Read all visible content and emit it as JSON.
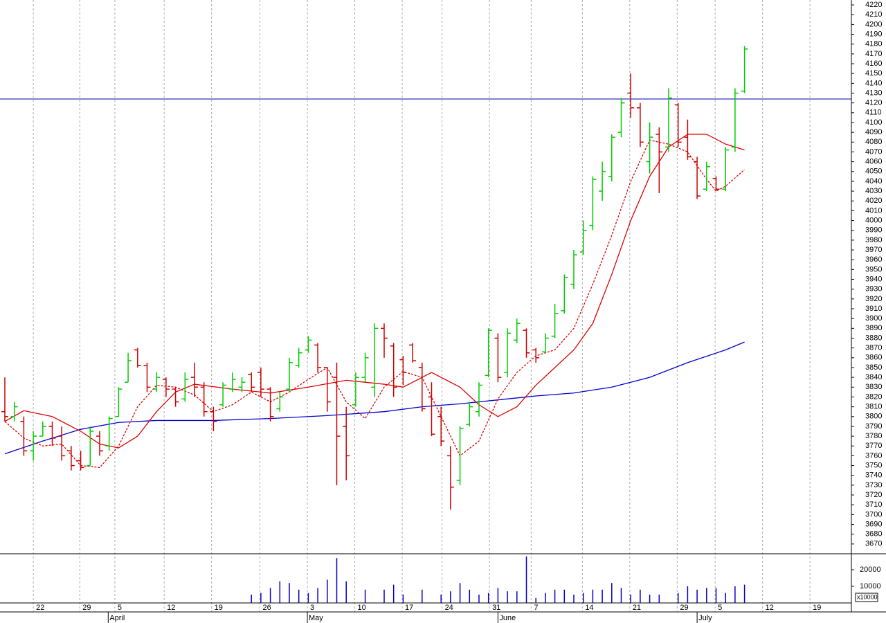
{
  "chart_data": {
    "type": "ohlc",
    "up_color": "#00cc00",
    "down_color": "#cc0000",
    "xlim": [
      -0.51,
      89.27
    ],
    "ylim": [
      3660,
      4225
    ],
    "open": [
      3805,
      3800,
      3795,
      3765,
      3780,
      3790,
      3780,
      3765,
      3755,
      3750,
      3780,
      3770,
      3800,
      3835,
      3868,
      3852,
      3828,
      3838,
      3828,
      3818,
      3840,
      3830,
      3805,
      3812,
      3828,
      3830,
      3843,
      3845,
      3828,
      3808,
      3828,
      3852,
      3868,
      3873,
      3850,
      3840,
      3790,
      3812,
      3840,
      3830,
      3890,
      3872,
      3858,
      3873,
      3850,
      3820,
      3800,
      3760,
      3735,
      3792,
      3805,
      3842,
      3880,
      3845,
      3878,
      3888,
      3868,
      3866,
      3882,
      3908,
      3935,
      3968,
      3995,
      4030,
      4045,
      4090,
      4130,
      4115,
      4060,
      4088,
      4075,
      4118,
      4085,
      4060,
      4032,
      4043,
      4032,
      4075,
      4132
    ],
    "high": [
      3840,
      3815,
      3800,
      3785,
      3795,
      3795,
      3790,
      3770,
      3765,
      3790,
      3785,
      3800,
      3830,
      3865,
      3870,
      3855,
      3845,
      3840,
      3830,
      3845,
      3855,
      3835,
      3810,
      3835,
      3845,
      3840,
      3845,
      3850,
      3830,
      3825,
      3860,
      3870,
      3882,
      3875,
      3850,
      3855,
      3810,
      3845,
      3865,
      3895,
      3895,
      3875,
      3862,
      3875,
      3855,
      3835,
      3810,
      3770,
      3790,
      3815,
      3835,
      3890,
      3885,
      3890,
      3900,
      3890,
      3870,
      3885,
      3915,
      3945,
      3970,
      4000,
      4045,
      4060,
      4088,
      4125,
      4150,
      4120,
      4100,
      4095,
      4135,
      4120,
      4103,
      4065,
      4060,
      4045,
      4075,
      4135,
      4178
    ],
    "low": [
      3795,
      3795,
      3760,
      3755,
      3780,
      3770,
      3755,
      3745,
      3745,
      3750,
      3760,
      3765,
      3800,
      3835,
      3850,
      3825,
      3825,
      3820,
      3810,
      3815,
      3820,
      3800,
      3785,
      3810,
      3825,
      3825,
      3825,
      3820,
      3795,
      3805,
      3825,
      3850,
      3865,
      3845,
      3805,
      3730,
      3735,
      3810,
      3835,
      3820,
      3860,
      3820,
      3832,
      3855,
      3805,
      3780,
      3770,
      3705,
      3730,
      3790,
      3800,
      3840,
      3835,
      3840,
      3875,
      3860,
      3855,
      3865,
      3880,
      3905,
      3930,
      3965,
      3990,
      4020,
      4040,
      4085,
      4105,
      4075,
      4048,
      4028,
      4070,
      4075,
      4062,
      4022,
      4030,
      4030,
      4030,
      4070,
      4130
    ],
    "close": [
      3800,
      3810,
      3765,
      3780,
      3790,
      3778,
      3760,
      3750,
      3748,
      3785,
      3765,
      3798,
      3828,
      3857,
      3852,
      3830,
      3840,
      3828,
      3815,
      3838,
      3830,
      3805,
      3795,
      3832,
      3838,
      3835,
      3830,
      3828,
      3800,
      3820,
      3855,
      3865,
      3878,
      3850,
      3815,
      3780,
      3760,
      3840,
      3860,
      3890,
      3880,
      3830,
      3845,
      3857,
      3808,
      3782,
      3775,
      3728,
      3788,
      3810,
      3832,
      3888,
      3840,
      3885,
      3895,
      3865,
      3860,
      3880,
      3905,
      3942,
      3965,
      3990,
      4042,
      4050,
      4085,
      4120,
      4115,
      4080,
      4085,
      4070,
      4125,
      4080,
      4065,
      4025,
      4055,
      4032,
      4072,
      4130,
      4175
    ],
    "overlays": [
      {
        "color": "#0000cc",
        "dashed": false,
        "x": [
          0,
          4,
          8,
          12,
          16,
          22,
          28,
          34,
          40,
          44,
          48,
          52,
          56,
          60,
          64,
          68,
          72,
          76,
          78
        ],
        "values": [
          3762,
          3775,
          3787,
          3794,
          3796,
          3796,
          3798,
          3801,
          3805,
          3810,
          3813,
          3817,
          3821,
          3824,
          3830,
          3840,
          3855,
          3868,
          3876
        ]
      },
      {
        "color": "#dd0000",
        "dashed": false,
        "x": [
          0,
          2,
          5,
          8,
          10,
          12,
          14,
          16,
          18,
          20,
          24,
          28,
          32,
          36,
          40,
          42,
          45,
          48,
          50,
          52,
          54,
          56,
          58,
          60,
          62,
          64,
          66,
          68,
          70,
          72,
          74,
          76,
          78
        ],
        "values": [
          3795,
          3806,
          3800,
          3785,
          3772,
          3768,
          3780,
          3805,
          3825,
          3833,
          3828,
          3824,
          3830,
          3837,
          3833,
          3830,
          3845,
          3830,
          3812,
          3800,
          3810,
          3832,
          3850,
          3868,
          3895,
          3945,
          4000,
          4045,
          4075,
          4088,
          4088,
          4078,
          4072
        ]
      },
      {
        "color": "#dd0000",
        "dashed": true,
        "x": [
          0,
          2,
          4,
          6,
          8,
          10,
          12,
          14,
          16,
          18,
          20,
          22,
          24,
          26,
          28,
          30,
          32,
          34,
          36,
          38,
          40,
          42,
          44,
          46,
          48,
          50,
          52,
          54,
          56,
          58,
          60,
          62,
          64,
          66,
          68,
          70,
          72,
          74,
          75,
          76,
          78
        ],
        "values": [
          3795,
          3778,
          3770,
          3772,
          3750,
          3748,
          3770,
          3810,
          3832,
          3830,
          3822,
          3805,
          3812,
          3825,
          3815,
          3825,
          3838,
          3850,
          3815,
          3798,
          3830,
          3846,
          3840,
          3800,
          3760,
          3775,
          3818,
          3845,
          3862,
          3868,
          3890,
          3935,
          3985,
          4040,
          4082,
          4078,
          4070,
          4042,
          4030,
          4035,
          4052
        ]
      }
    ],
    "hline": {
      "value": 4124,
      "color": "#0000aa"
    },
    "yticks": [
      3670,
      3680,
      3690,
      3700,
      3710,
      3720,
      3730,
      3740,
      3750,
      3760,
      3770,
      3780,
      3790,
      3800,
      3810,
      3820,
      3830,
      3840,
      3850,
      3860,
      3870,
      3880,
      3890,
      3900,
      3910,
      3920,
      3930,
      3940,
      3950,
      3960,
      3970,
      3980,
      3990,
      4000,
      4010,
      4020,
      4030,
      4040,
      4050,
      4060,
      4070,
      4080,
      4090,
      4100,
      4110,
      4120,
      4130,
      4140,
      4150,
      4160,
      4170,
      4180,
      4190,
      4200,
      4210,
      4220
    ],
    "xticks": [
      {
        "value": 3.0,
        "label": "22"
      },
      {
        "value": 7.9,
        "label": "29"
      },
      {
        "value": 11.6,
        "label": "5"
      },
      {
        "value": 16.8,
        "label": "12"
      },
      {
        "value": 21.8,
        "label": "19"
      },
      {
        "value": 26.9,
        "label": "26"
      },
      {
        "value": 31.9,
        "label": "3"
      },
      {
        "value": 36.9,
        "label": "10"
      },
      {
        "value": 41.9,
        "label": "17"
      },
      {
        "value": 46.1,
        "label": "24"
      },
      {
        "value": 51.1,
        "label": "31"
      },
      {
        "value": 55.5,
        "label": "7"
      },
      {
        "value": 60.9,
        "label": "14"
      },
      {
        "value": 65.9,
        "label": "21"
      },
      {
        "value": 70.9,
        "label": "29"
      },
      {
        "value": 74.9,
        "label": "5"
      },
      {
        "value": 79.9,
        "label": "12"
      },
      {
        "value": 84.9,
        "label": "19"
      }
    ],
    "month_ticks": [
      {
        "value": 10.9,
        "label": "April"
      },
      {
        "value": 31.9,
        "label": "May"
      },
      {
        "value": 52.0,
        "label": "June"
      },
      {
        "value": 73.0,
        "label": "July"
      }
    ],
    "volume": {
      "color": "#0000cc",
      "unit": "x10000",
      "ylim": [
        0,
        29600
      ],
      "yticks": [
        10000,
        20000
      ],
      "values": [
        null,
        null,
        null,
        null,
        null,
        null,
        null,
        null,
        null,
        null,
        null,
        null,
        null,
        null,
        null,
        null,
        null,
        null,
        null,
        null,
        null,
        null,
        null,
        null,
        null,
        null,
        5000,
        6000,
        9000,
        13000,
        12000,
        8000,
        6000,
        9000,
        14000,
        27000,
        13000,
        null,
        8000,
        null,
        8000,
        11000,
        5000,
        null,
        8000,
        null,
        5000,
        7000,
        12000,
        8000,
        5000,
        6000,
        9000,
        7000,
        7000,
        28000,
        3000,
        6000,
        8000,
        8000,
        5000,
        6000,
        8000,
        8000,
        12000,
        9000,
        5000,
        8000,
        5000,
        5000,
        null,
        6000,
        10000,
        8000,
        9000,
        9000,
        6000,
        10000,
        11000
      ]
    }
  }
}
